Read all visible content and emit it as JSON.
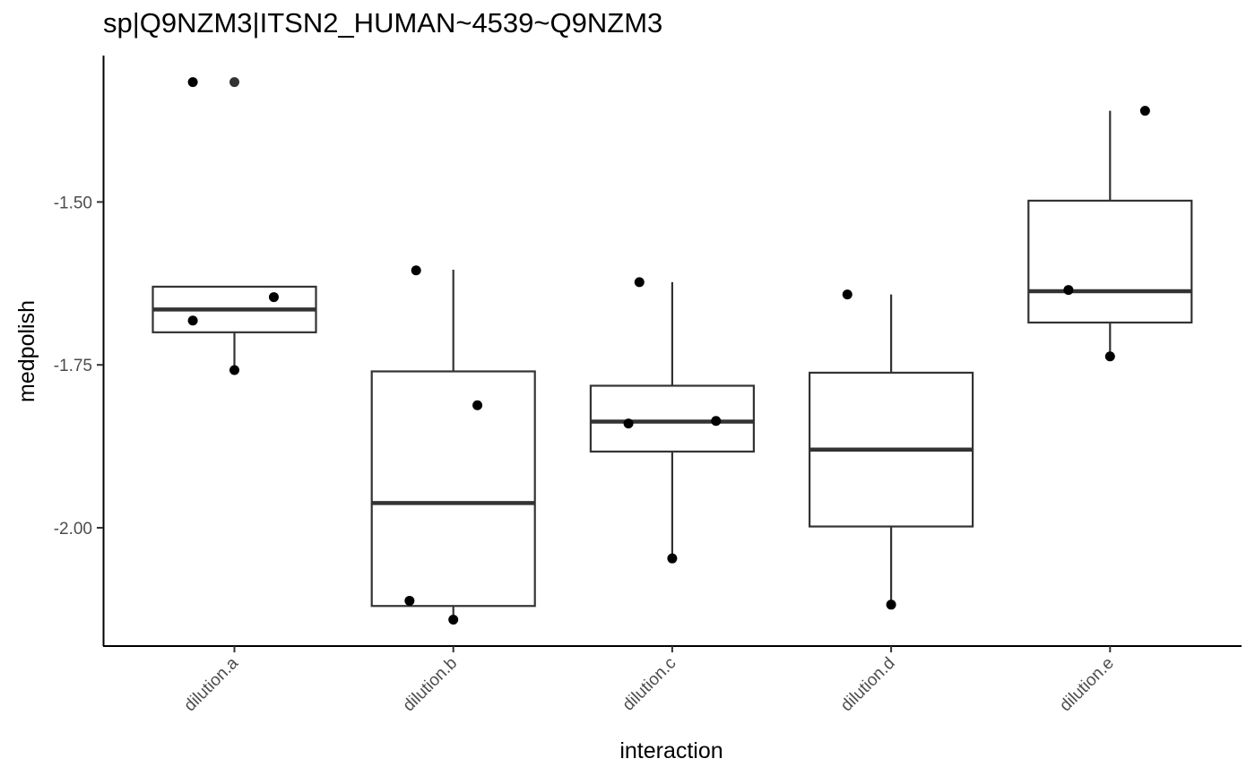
{
  "chart_data": {
    "type": "boxplot",
    "title": "sp|Q9NZM3|ITSN2_HUMAN~4539~Q9NZM3",
    "xlabel": "interaction",
    "ylabel": "medpolish",
    "categories": [
      "dilution.a",
      "dilution.b",
      "dilution.c",
      "dilution.d",
      "dilution.e"
    ],
    "yticks": [
      -1.5,
      -1.75,
      -2.0
    ],
    "ytick_labels": [
      "-1.50",
      "-1.75",
      "-2.00"
    ],
    "ylim": [
      -2.18,
      -1.32
    ],
    "grid": false,
    "legend": "none",
    "boxes": [
      {
        "category": "dilution.a",
        "lower_whisker": -1.76,
        "q1": -1.7,
        "median": -1.665,
        "q3": -1.63,
        "upper_whisker": -1.63
      },
      {
        "category": "dilution.b",
        "lower_whisker": -2.14,
        "q1": -2.12,
        "median": -1.962,
        "q3": -1.76,
        "upper_whisker": -1.604
      },
      {
        "category": "dilution.c",
        "lower_whisker": -2.047,
        "q1": -1.883,
        "median": -1.837,
        "q3": -1.782,
        "upper_whisker": -1.623
      },
      {
        "category": "dilution.d",
        "lower_whisker": -2.118,
        "q1": -1.998,
        "median": -1.88,
        "q3": -1.762,
        "upper_whisker": -1.642
      },
      {
        "category": "dilution.e",
        "lower_whisker": -1.738,
        "q1": -1.685,
        "median": -1.637,
        "q3": -1.498,
        "upper_whisker": -1.36
      }
    ],
    "outliers": [
      {
        "category": "dilution.a",
        "y": -1.316
      }
    ],
    "points": [
      {
        "category": "dilution.a",
        "offset": -0.19,
        "y": -1.316
      },
      {
        "category": "dilution.a",
        "offset": -0.19,
        "y": -1.682
      },
      {
        "category": "dilution.a",
        "offset": 0.18,
        "y": -1.646
      },
      {
        "category": "dilution.a",
        "offset": 0.0,
        "y": -1.758
      },
      {
        "category": "dilution.b",
        "offset": -0.17,
        "y": -1.605
      },
      {
        "category": "dilution.b",
        "offset": 0.11,
        "y": -1.812
      },
      {
        "category": "dilution.b",
        "offset": -0.2,
        "y": -2.112
      },
      {
        "category": "dilution.b",
        "offset": 0.0,
        "y": -2.141
      },
      {
        "category": "dilution.c",
        "offset": -0.15,
        "y": -1.623
      },
      {
        "category": "dilution.c",
        "offset": -0.2,
        "y": -1.84
      },
      {
        "category": "dilution.c",
        "offset": 0.2,
        "y": -1.836
      },
      {
        "category": "dilution.c",
        "offset": 0.0,
        "y": -2.047
      },
      {
        "category": "dilution.d",
        "offset": -0.2,
        "y": -1.642
      },
      {
        "category": "dilution.d",
        "offset": 0.0,
        "y": -2.118
      },
      {
        "category": "dilution.e",
        "offset": -0.19,
        "y": -1.635
      },
      {
        "category": "dilution.e",
        "offset": 0.16,
        "y": -1.36
      },
      {
        "category": "dilution.e",
        "offset": 0.0,
        "y": -1.737
      }
    ],
    "colors": {
      "box_line": "#333333",
      "point": "#000000",
      "outlier": "#333333",
      "axis": "#000000",
      "tick_text": "#4d4d4d"
    }
  }
}
